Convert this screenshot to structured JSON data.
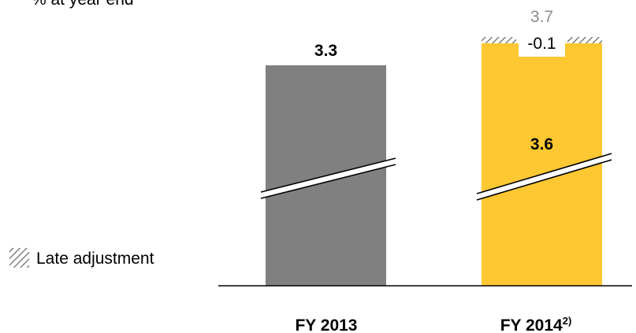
{
  "chart_data": {
    "type": "bar",
    "unit_label": "% at year end",
    "categories": [
      {
        "label": "FY 2013",
        "footnote": ""
      },
      {
        "label": "FY 2014",
        "footnote": "2)"
      }
    ],
    "bars": [
      {
        "category": "FY 2013",
        "value": 3.3,
        "value_label": "3.3",
        "color": "#808080",
        "axis_break": true
      },
      {
        "category": "FY 2014",
        "value": 3.6,
        "value_label": "3.6",
        "color": "#fdc832",
        "axis_break": true,
        "late_adjustment": {
          "value": -0.1,
          "value_label": "-0.1"
        },
        "total": {
          "value": 3.7,
          "value_label": "3.7"
        }
      }
    ],
    "legend": {
      "label": "Late adjustment",
      "pattern": "hatched",
      "placement": "left"
    },
    "colors": {
      "fy2013": "#808080",
      "fy2014": "#fdc832",
      "total_label": "#8c8c8c",
      "hatch": "#808080"
    }
  }
}
